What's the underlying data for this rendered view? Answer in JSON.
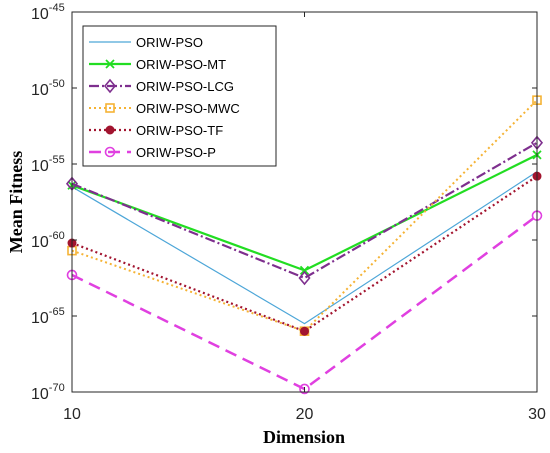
{
  "chart_data": {
    "type": "line",
    "title": "",
    "xlabel": "Dimension",
    "ylabel": "Mean Fitness",
    "x": [
      10,
      20,
      30
    ],
    "xlim": [
      10,
      30
    ],
    "ylim_log10": [
      -70,
      -45
    ],
    "y_scale": "log",
    "x_ticks": [
      "10",
      "20",
      "30"
    ],
    "y_ticks": [
      {
        "base": "10",
        "exp": "-45",
        "value_log10": -45
      },
      {
        "base": "10",
        "exp": "-50",
        "value_log10": -50
      },
      {
        "base": "10",
        "exp": "-55",
        "value_log10": -55
      },
      {
        "base": "10",
        "exp": "-60",
        "value_log10": -60
      },
      {
        "base": "10",
        "exp": "-65",
        "value_log10": -65
      },
      {
        "base": "10",
        "exp": "-70",
        "value_log10": -70
      }
    ],
    "grid": false,
    "legend_position": "top-left",
    "series": [
      {
        "name": "ORIW-PSO",
        "y_log10": [
          -56.5,
          -65.5,
          -55.5
        ],
        "color": "#4DA6D8",
        "dash": "",
        "marker": "none",
        "width": 1.2
      },
      {
        "name": "ORIW-PSO-MT",
        "y_log10": [
          -56.4,
          -62.0,
          -54.4
        ],
        "color": "#22DD22",
        "dash": "",
        "marker": "x",
        "width": 2.2
      },
      {
        "name": "ORIW-PSO-LCG",
        "y_log10": [
          -56.3,
          -62.5,
          -53.6
        ],
        "color": "#7E2F8E",
        "dash": "10,3,2,3",
        "marker": "diamond",
        "width": 2.2
      },
      {
        "name": "ORIW-PSO-MWC",
        "y_log10": [
          -60.7,
          -66.0,
          -50.8
        ],
        "color": "#F5B335",
        "dash": "2,3",
        "marker": "square",
        "width": 2.0
      },
      {
        "name": "ORIW-PSO-TF",
        "y_log10": [
          -60.2,
          -66.0,
          -55.8
        ],
        "color": "#A2142F",
        "dash": "2,3",
        "marker": "circle-filled",
        "width": 2.2
      },
      {
        "name": "ORIW-PSO-P",
        "y_log10": [
          -62.3,
          -69.8,
          -58.4
        ],
        "color": "#E040E0",
        "dash": "12,7",
        "marker": "circle-open",
        "width": 2.5
      }
    ]
  }
}
